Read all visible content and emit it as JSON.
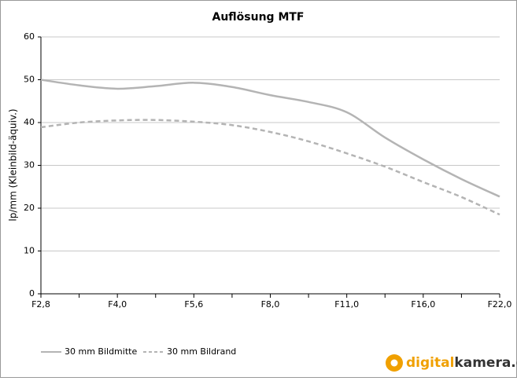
{
  "chart_data": {
    "type": "line",
    "title": "Auflösung MTF",
    "y_label": "lp/mm  (Kleinbild-äquiv.)",
    "categories": [
      "F2,8",
      null,
      "F4,0",
      null,
      "F5,6",
      null,
      "F8,0",
      null,
      "F11,0",
      null,
      "F16,0",
      null,
      "F22,0"
    ],
    "series": [
      {
        "name": "30 mm Bildmitte",
        "color": "#b4b4b4",
        "dash": false,
        "values": [
          50,
          48.7,
          47.9,
          48.5,
          49.3,
          48.3,
          46.4,
          44.8,
          42.4,
          36.5,
          31.4,
          26.8,
          22.7
        ]
      },
      {
        "name": "30 mm Bildrand",
        "color": "#b4b4b4",
        "dash": true,
        "values": [
          38.9,
          40,
          40.5,
          40.6,
          40.2,
          39.4,
          37.8,
          35.6,
          32.8,
          29.7,
          26.1,
          22.6,
          18.5
        ]
      }
    ],
    "ylim": [
      0,
      60
    ],
    "yticks": [
      0,
      10,
      20,
      30,
      40,
      50,
      60
    ],
    "grid": true,
    "watermark": [
      "digital",
      "kamera.de"
    ]
  }
}
